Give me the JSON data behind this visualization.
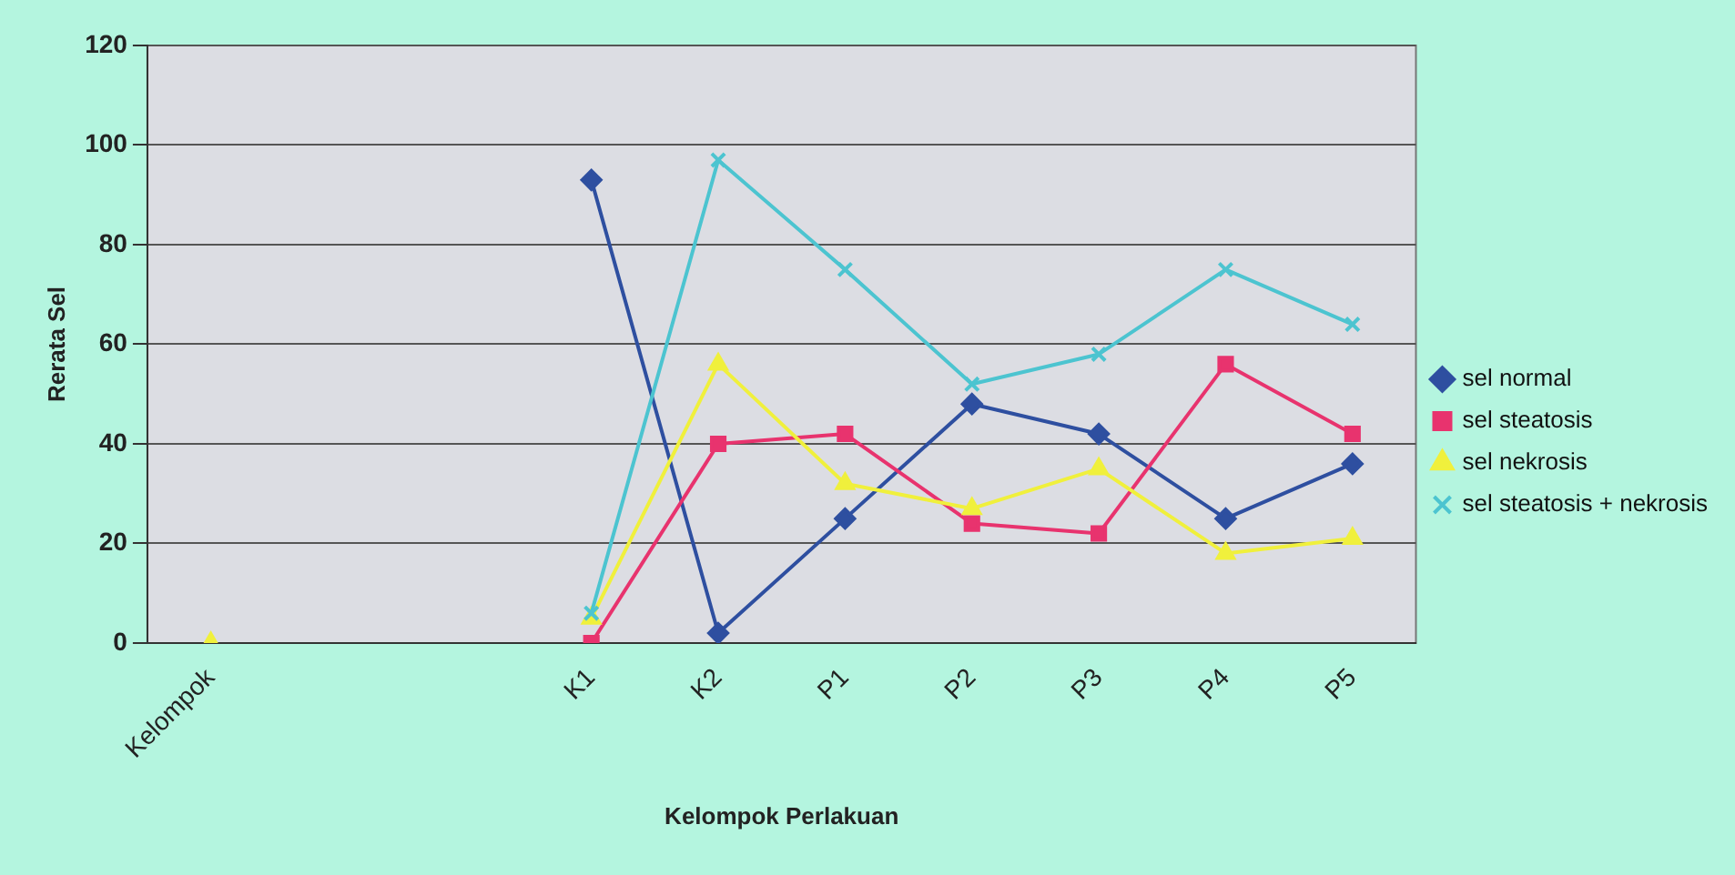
{
  "chart_data": {
    "type": "line",
    "xlabel": "Kelompok Perlakuan",
    "ylabel": "Rerata Sel",
    "categories": [
      "Kelompok",
      null,
      null,
      "K1",
      "K2",
      "P1",
      "P2",
      "P3",
      "P4",
      "P5"
    ],
    "series": [
      {
        "name": "sel normal",
        "color": "#2e4fa0",
        "marker": "diamond",
        "values": [
          null,
          null,
          null,
          93,
          2,
          25,
          48,
          42,
          25,
          36
        ]
      },
      {
        "name": "sel steatosis",
        "color": "#e8336e",
        "marker": "square",
        "values": [
          null,
          null,
          null,
          0,
          40,
          42,
          24,
          22,
          56,
          42
        ]
      },
      {
        "name": "sel nekrosis",
        "color": "#f0f03c",
        "marker": "triangle",
        "values": [
          0,
          null,
          null,
          5,
          56,
          32,
          27,
          35,
          18,
          21
        ]
      },
      {
        "name": "sel steatosis + nekrosis",
        "color": "#4cc4d0",
        "marker": "cross",
        "values": [
          null,
          null,
          null,
          6,
          97,
          75,
          52,
          58,
          75,
          64
        ]
      }
    ],
    "ylim": [
      0,
      120
    ],
    "yticks": [
      0,
      20,
      40,
      60,
      80,
      100,
      120
    ],
    "grid": "y",
    "legend": "right"
  }
}
